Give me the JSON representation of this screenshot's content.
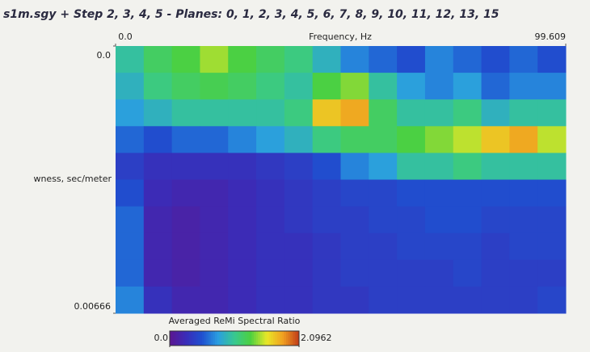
{
  "chart_data": {
    "type": "heatmap",
    "title": "s1m.sgy + Step 2, 3, 4, 5 - Planes: 0, 1, 2, 3, 4, 5, 6, 7, 8, 9, 10, 11, 12, 13, 15",
    "x_label": "Frequency, Hz",
    "y_label": "wness, sec/meter",
    "xlim": [
      0,
      99.609
    ],
    "xticks": [
      {
        "value": 0,
        "label": "0.0"
      },
      99.609
    ],
    "ylim": [
      0,
      0.00666
    ],
    "yticks": [
      {
        "value": 0,
        "label": "0.0"
      },
      0.00666
    ],
    "colorbar_label": "Averaged ReMi Spectral Ratio",
    "clim": [
      0,
      2.0962
    ],
    "cticks": [
      {
        "value": 0,
        "label": "0.0"
      },
      2.0962
    ],
    "colormap": [
      "#5c1690",
      "#3a2cb8",
      "#1f50d0",
      "#2a9ee0",
      "#38c890",
      "#4cd040",
      "#e8e828",
      "#f0a020",
      "#c03a18"
    ],
    "z": [
      [
        1.0,
        1.2,
        1.3,
        1.45,
        1.3,
        1.2,
        1.1,
        0.9,
        0.7,
        0.6,
        0.5,
        0.7,
        0.6,
        0.5,
        0.6,
        0.5
      ],
      [
        0.9,
        1.1,
        1.2,
        1.25,
        1.2,
        1.1,
        1.0,
        1.3,
        1.4,
        1.0,
        0.8,
        0.7,
        0.8,
        0.6,
        0.7,
        0.7
      ],
      [
        0.8,
        0.9,
        1.0,
        1.0,
        1.0,
        1.0,
        1.1,
        1.7,
        1.8,
        1.2,
        1.0,
        1.0,
        1.1,
        0.9,
        1.0,
        1.0
      ],
      [
        0.6,
        0.5,
        0.6,
        0.6,
        0.7,
        0.8,
        0.9,
        1.1,
        1.2,
        1.2,
        1.3,
        1.4,
        1.5,
        1.7,
        1.8,
        1.5
      ],
      [
        0.4,
        0.3,
        0.3,
        0.3,
        0.3,
        0.35,
        0.4,
        0.5,
        0.7,
        0.8,
        1.0,
        1.0,
        1.1,
        1.0,
        1.0,
        1.0
      ],
      [
        0.5,
        0.25,
        0.2,
        0.2,
        0.25,
        0.3,
        0.35,
        0.4,
        0.45,
        0.45,
        0.5,
        0.5,
        0.5,
        0.5,
        0.5,
        0.5
      ],
      [
        0.6,
        0.2,
        0.15,
        0.2,
        0.25,
        0.3,
        0.35,
        0.4,
        0.4,
        0.45,
        0.45,
        0.5,
        0.5,
        0.45,
        0.45,
        0.45
      ],
      [
        0.6,
        0.2,
        0.15,
        0.2,
        0.25,
        0.3,
        0.3,
        0.35,
        0.4,
        0.4,
        0.45,
        0.45,
        0.45,
        0.4,
        0.45,
        0.45
      ],
      [
        0.6,
        0.2,
        0.15,
        0.2,
        0.25,
        0.3,
        0.3,
        0.35,
        0.4,
        0.4,
        0.4,
        0.4,
        0.45,
        0.4,
        0.4,
        0.4
      ],
      [
        0.7,
        0.3,
        0.2,
        0.2,
        0.25,
        0.3,
        0.3,
        0.35,
        0.35,
        0.4,
        0.4,
        0.4,
        0.4,
        0.4,
        0.4,
        0.45
      ]
    ]
  }
}
